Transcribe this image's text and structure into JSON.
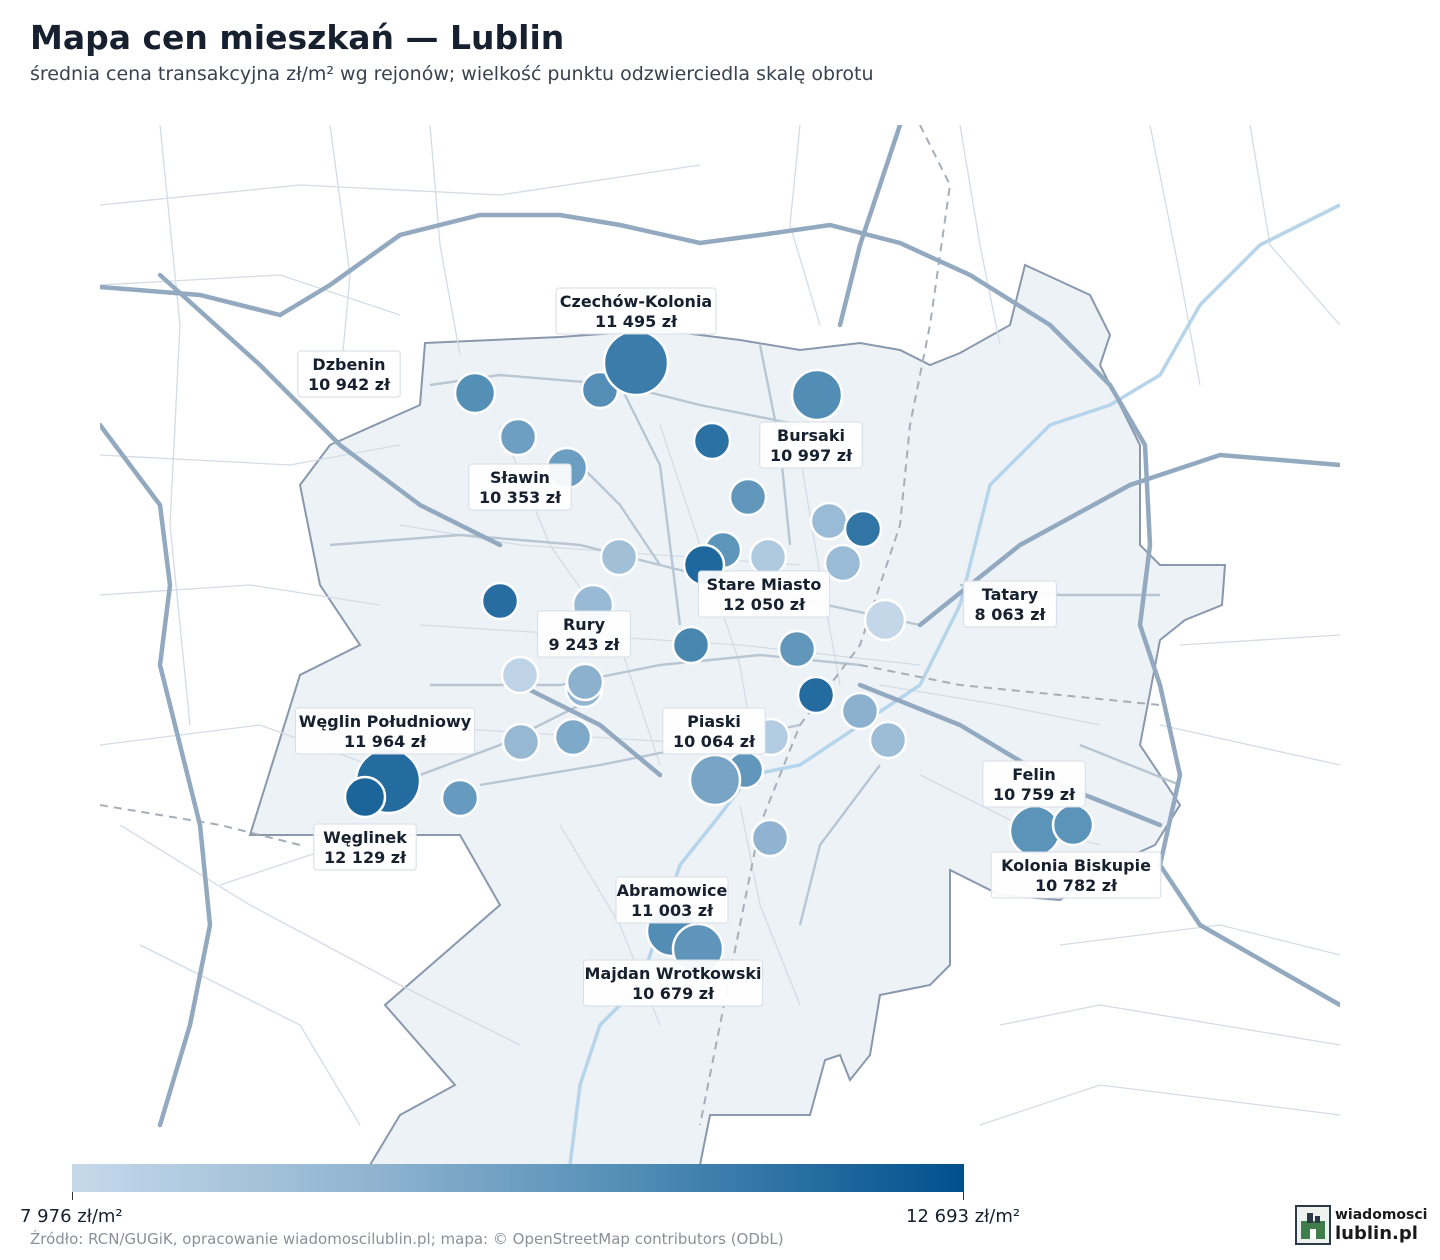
{
  "title": "Mapa cen mieszkań — Lublin",
  "subtitle": "średnia cena transakcyjna zł/m² wg rejonów; wielkość punktu odzwierciedla skalę obrotu",
  "legend": {
    "min_label": "7 976 zł/m²",
    "max_label": "12 693 zł/m²",
    "min_value": 7976,
    "max_value": 12693,
    "colors": [
      "#c6d9ea",
      "#8db2cf",
      "#4d8ab3",
      "#00508e"
    ]
  },
  "source": "Źródło: RCN/GUGiK, opracowanie wiadomoscilublin.pl; mapa: © OpenStreetMap contributors (ODbL)",
  "logo": {
    "line1": "wiadomosci",
    "line2": "lublin.pl"
  },
  "districts": [
    {
      "name": "Czechów-Kolonia",
      "price": "11 495 zł",
      "value": 11495,
      "turnover": 3
    },
    {
      "name": "Dzbenin",
      "price": "10 942 zł",
      "value": 10942,
      "turnover": 1
    },
    {
      "name": "Bursaki",
      "price": "10 997 zł",
      "value": 10997,
      "turnover": 2
    },
    {
      "name": "Sławin",
      "price": "10 353 zł",
      "value": 10353,
      "turnover": 1
    },
    {
      "name": "Stare Miasto",
      "price": "12 050 zł",
      "value": 12050,
      "turnover": 1
    },
    {
      "name": "Tatary",
      "price": "8 063 zł",
      "value": 8063,
      "turnover": 1
    },
    {
      "name": "Rury",
      "price": "9 243 zł",
      "value": 9243,
      "turnover": 1
    },
    {
      "name": "Węglin Południowy",
      "price": "11 964 zł",
      "value": 11964,
      "turnover": 3
    },
    {
      "name": "Piaski",
      "price": "10 064 zł",
      "value": 10064,
      "turnover": 2
    },
    {
      "name": "Felin",
      "price": "10 759 zł",
      "value": 10759,
      "turnover": 2
    },
    {
      "name": "Węglinek",
      "price": "12 129 zł",
      "value": 12129,
      "turnover": 1
    },
    {
      "name": "Kolonia Biskupie",
      "price": "10 782 zł",
      "value": 10782,
      "turnover": 1
    },
    {
      "name": "Abramowice",
      "price": "11 003 zł",
      "value": 11003,
      "turnover": 2
    },
    {
      "name": "Majdan Wrotkowski",
      "price": "10 679 zł",
      "value": 10679,
      "turnover": 2
    }
  ],
  "unlabeled_points": [
    {
      "value": 10950
    },
    {
      "value": 10300
    },
    {
      "value": 11800
    },
    {
      "value": 10600
    },
    {
      "value": 9200
    },
    {
      "value": 11700
    },
    {
      "value": 9200
    },
    {
      "value": 10700
    },
    {
      "value": 9000
    },
    {
      "value": 8600
    },
    {
      "value": 9400
    },
    {
      "value": 8200
    },
    {
      "value": 11900
    },
    {
      "value": 10600
    },
    {
      "value": 11950
    },
    {
      "value": 9600
    },
    {
      "value": 9100
    },
    {
      "value": 8500
    },
    {
      "value": 9300
    },
    {
      "value": 10600
    },
    {
      "value": 11200
    },
    {
      "value": 9600
    },
    {
      "value": 9900
    },
    {
      "value": 10500
    },
    {
      "value": 9500
    },
    {
      "value": 8900
    }
  ]
}
